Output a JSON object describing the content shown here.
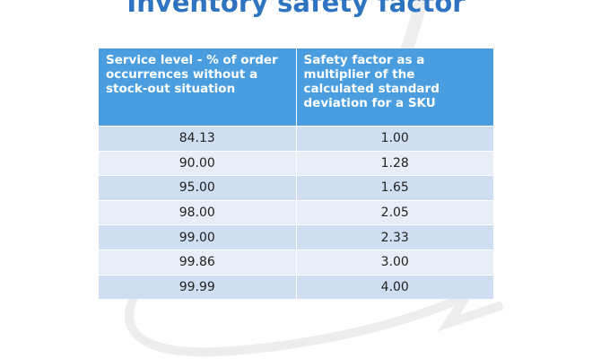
{
  "title": "Inventory safety factor",
  "table": {
    "header": [
      "Service level -  % of order occurrences without a stock-out situation",
      "Safety factor as a multiplier of the calculated standard deviation for a SKU"
    ],
    "rows": [
      [
        "84.13",
        "1.00"
      ],
      [
        "90.00",
        "1.28"
      ],
      [
        "95.00",
        "1.65"
      ],
      [
        "98.00",
        "2.05"
      ],
      [
        "99.00",
        "2.33"
      ],
      [
        "99.86",
        "3.00"
      ],
      [
        "99.99",
        "4.00"
      ]
    ]
  }
}
